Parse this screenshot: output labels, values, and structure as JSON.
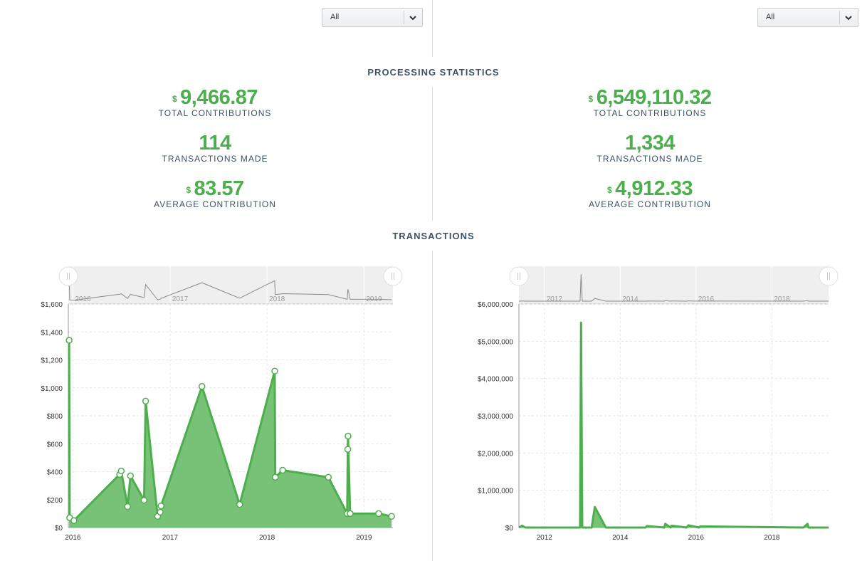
{
  "filters": {
    "left": {
      "selected": "All"
    },
    "right": {
      "selected": "All"
    }
  },
  "sections": {
    "processing_title": "PROCESSING STATISTICS",
    "transactions_title": "TRANSACTIONS"
  },
  "stats": {
    "left": {
      "total": {
        "currency": "$",
        "value": "9,466.87",
        "label": "TOTAL CONTRIBUTIONS"
      },
      "count": {
        "value": "114",
        "label": "TRANSACTIONS MADE"
      },
      "average": {
        "currency": "$",
        "value": "83.57",
        "label": "AVERAGE CONTRIBUTION"
      }
    },
    "right": {
      "total": {
        "currency": "$",
        "value": "6,549,110.32",
        "label": "TOTAL CONTRIBUTIONS"
      },
      "count": {
        "value": "1,334",
        "label": "TRANSACTIONS MADE"
      },
      "average": {
        "currency": "$",
        "value": "4,912.33",
        "label": "AVERAGE CONTRIBUTION"
      }
    }
  },
  "colors": {
    "accent": "#4cae4c",
    "area_fill": "#6dbd6d",
    "navigator_bg": "#efefef"
  },
  "icons": {
    "dropdown": "chevron-down-icon",
    "handle": "range-handle-icon"
  },
  "chart_data": [
    {
      "type": "area",
      "xlabel": "",
      "ylabel": "",
      "x_tick_labels": [
        "2016",
        "2017",
        "2018",
        "2019"
      ],
      "y_tick_labels": [
        "$0",
        "$200",
        "$400",
        "$600",
        "$800",
        "$1,000",
        "$1,200",
        "$1,400",
        "$1,600"
      ],
      "ylim": [
        0,
        1600
      ],
      "xlim": [
        "2015-12-15",
        "2019-04-20"
      ],
      "markers": true,
      "navigator": {
        "tick_labels": [
          "2016",
          "2017",
          "2018",
          "2019"
        ]
      },
      "series": [
        {
          "x": [
            "2015-12-18",
            "2015-12-20",
            "2016-01-05",
            "2016-06-25",
            "2016-07-01",
            "2016-07-25",
            "2016-08-05",
            "2016-09-25",
            "2016-10-01",
            "2016-11-15",
            "2016-11-25",
            "2016-11-28",
            "2017-05-01",
            "2017-09-20",
            "2018-01-30",
            "2018-02-01",
            "2018-03-01",
            "2018-08-20",
            "2018-10-30",
            "2018-11-01",
            "2018-11-02",
            "2018-11-10",
            "2019-02-25",
            "2019-04-15"
          ],
          "y": [
            1340,
            70,
            50,
            380,
            405,
            150,
            370,
            195,
            905,
            80,
            110,
            155,
            1010,
            165,
            1120,
            360,
            410,
            360,
            100,
            560,
            655,
            100,
            100,
            80
          ]
        }
      ]
    },
    {
      "type": "area",
      "xlabel": "",
      "ylabel": "",
      "x_tick_labels": [
        "2012",
        "2014",
        "2016",
        "2018"
      ],
      "y_tick_labels": [
        "$0",
        "$1,000,000",
        "$2,000,000",
        "$3,000,000",
        "$4,000,000",
        "$5,000,000",
        "$6,000,000"
      ],
      "ylim": [
        0,
        6000000
      ],
      "xlim": [
        "2011-05-01",
        "2019-07-01"
      ],
      "markers": false,
      "navigator": {
        "tick_labels": [
          "2012",
          "2014",
          "2016",
          "2018"
        ]
      },
      "series": [
        {
          "x": [
            "2011-05-01",
            "2011-06-01",
            "2011-07-01",
            "2012-12-10",
            "2012-12-20",
            "2012-12-31",
            "2013-04-01",
            "2013-05-01",
            "2013-08-15",
            "2014-09-01",
            "2014-09-15",
            "2015-03-01",
            "2015-03-10",
            "2015-05-01",
            "2015-05-10",
            "2015-10-01",
            "2015-10-20",
            "2016-02-01",
            "2016-02-10",
            "2018-11-01",
            "2018-12-10",
            "2018-12-20",
            "2019-07-01"
          ],
          "y": [
            0,
            50000,
            0,
            0,
            5500000,
            0,
            0,
            550000,
            0,
            0,
            40000,
            0,
            100000,
            0,
            50000,
            0,
            60000,
            0,
            30000,
            0,
            100000,
            0,
            0
          ]
        }
      ]
    }
  ]
}
